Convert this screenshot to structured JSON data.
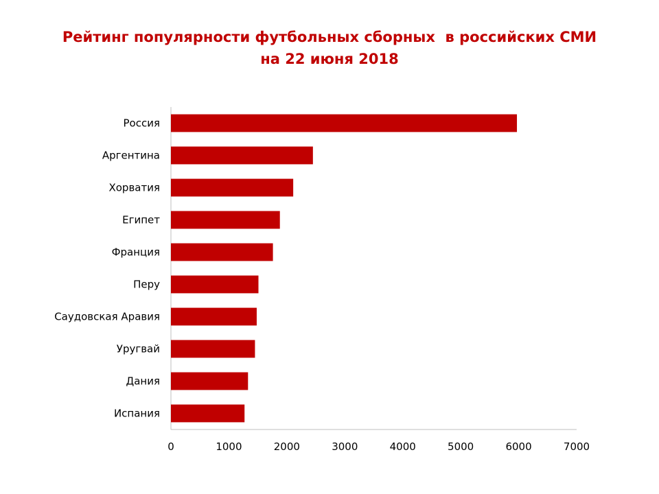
{
  "chart_data": {
    "type": "bar",
    "orientation": "horizontal",
    "title": "Рейтинг популярности футбольных сборных  в российских СМИ",
    "subtitle": "на 22 июня 2018",
    "categories": [
      "Россия",
      "Аргентина",
      "Хорватия",
      "Египет",
      "Франция",
      "Перу",
      "Саудовская Аравия",
      "Уругвай",
      "Дания",
      "Испания"
    ],
    "values": [
      5970,
      2450,
      2110,
      1880,
      1760,
      1510,
      1480,
      1450,
      1330,
      1270
    ],
    "xlim": [
      0,
      7000
    ],
    "xticks": [
      "0",
      "1000",
      "2000",
      "3000",
      "4000",
      "5000",
      "6000",
      "7000"
    ],
    "grid": false,
    "legend": "none",
    "bar_color": "#c00000",
    "title_color": "#c00000"
  }
}
